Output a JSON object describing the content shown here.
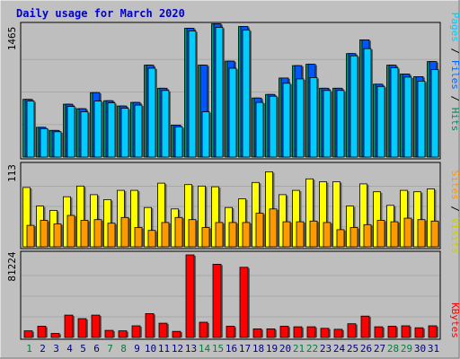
{
  "chart_data": [
    {
      "type": "bar",
      "title": "Daily usage for March 2020",
      "ymax_label": "1465",
      "right_labels": [
        "Pages",
        "Files",
        "Hits"
      ],
      "colors": {
        "pages": "#00ccff",
        "files": "#00c0ff",
        "hits": "#00aa66"
      },
      "categories": [
        "1",
        "2",
        "3",
        "4",
        "5",
        "6",
        "7",
        "8",
        "9",
        "10",
        "11",
        "12",
        "13",
        "14",
        "15",
        "16",
        "17",
        "18",
        "19",
        "20",
        "21",
        "22",
        "23",
        "24",
        "25",
        "26",
        "27",
        "28",
        "29",
        "30",
        "31"
      ],
      "series": [
        {
          "name": "Hits",
          "values": [
            650,
            335,
            300,
            595,
            545,
            725,
            635,
            575,
            615,
            1035,
            775,
            360,
            1450,
            1035,
            1500,
            1080,
            1470,
            665,
            705,
            890,
            1030,
            1045,
            775,
            775,
            1165,
            1320,
            820,
            1035,
            935,
            905,
            1075
          ]
        },
        {
          "name": "Files",
          "values": [
            650,
            335,
            300,
            595,
            545,
            725,
            635,
            575,
            615,
            1035,
            775,
            360,
            1450,
            1035,
            1500,
            1080,
            1470,
            665,
            705,
            890,
            1030,
            1045,
            775,
            775,
            1165,
            1320,
            820,
            1035,
            935,
            905,
            1075
          ]
        },
        {
          "name": "Pages",
          "values": [
            630,
            320,
            285,
            570,
            510,
            630,
            610,
            550,
            585,
            1000,
            750,
            340,
            1420,
            510,
            1460,
            1000,
            1430,
            615,
            685,
            830,
            880,
            895,
            750,
            750,
            1140,
            1220,
            795,
            1005,
            900,
            855,
            985
          ]
        }
      ]
    },
    {
      "type": "bar",
      "ymax_label": "113",
      "right_labels": [
        "Sites",
        "Visits"
      ],
      "colors": {
        "sites": "#ff9900",
        "visits": "#ffff00"
      },
      "categories": [
        "1",
        "2",
        "3",
        "4",
        "5",
        "6",
        "7",
        "8",
        "9",
        "10",
        "11",
        "12",
        "13",
        "14",
        "15",
        "16",
        "17",
        "18",
        "19",
        "20",
        "21",
        "22",
        "23",
        "24",
        "25",
        "26",
        "27",
        "28",
        "29",
        "30",
        "31"
      ],
      "series": [
        {
          "name": "Visits",
          "values": [
            83,
            57,
            51,
            70,
            85,
            73,
            66,
            79,
            79,
            55,
            89,
            53,
            87,
            85,
            84,
            55,
            67,
            90,
            105,
            73,
            79,
            95,
            91,
            91,
            57,
            88,
            77,
            58,
            79,
            77,
            81
          ]
        },
        {
          "name": "Sites",
          "values": [
            30,
            37,
            32,
            44,
            37,
            38,
            33,
            41,
            27,
            23,
            34,
            41,
            38,
            27,
            34,
            34,
            34,
            47,
            53,
            35,
            35,
            36,
            34,
            24,
            27,
            31,
            37,
            35,
            40,
            38,
            36
          ]
        }
      ]
    },
    {
      "type": "bar",
      "ymax_label": "81224",
      "right_labels": [
        "KBytes"
      ],
      "colors": {
        "kbytes": "#ff0000"
      },
      "categories": [
        "1",
        "2",
        "3",
        "4",
        "5",
        "6",
        "7",
        "8",
        "9",
        "10",
        "11",
        "12",
        "13",
        "14",
        "15",
        "16",
        "17",
        "18",
        "19",
        "20",
        "21",
        "22",
        "23",
        "24",
        "25",
        "26",
        "27",
        "28",
        "29",
        "30",
        "31"
      ],
      "series": [
        {
          "name": "KBytes",
          "values": [
            6500,
            11000,
            4000,
            22000,
            18500,
            22000,
            7000,
            6500,
            11500,
            23500,
            14000,
            6000,
            81224,
            15000,
            72000,
            11000,
            69000,
            8500,
            8500,
            11000,
            10500,
            10500,
            9000,
            8000,
            13500,
            21000,
            10500,
            11000,
            11500,
            9500,
            11500
          ]
        }
      ]
    }
  ],
  "x_axis": {
    "labels": [
      "1",
      "2",
      "3",
      "4",
      "5",
      "6",
      "7",
      "8",
      "9",
      "10",
      "11",
      "12",
      "13",
      "14",
      "15",
      "16",
      "17",
      "18",
      "19",
      "20",
      "21",
      "22",
      "23",
      "24",
      "25",
      "26",
      "27",
      "28",
      "29",
      "30",
      "31"
    ],
    "weekend_days": [
      "1",
      "7",
      "8",
      "14",
      "15",
      "21",
      "22",
      "28",
      "29"
    ],
    "weekday_color": "#000080",
    "weekend_color": "#008040"
  }
}
